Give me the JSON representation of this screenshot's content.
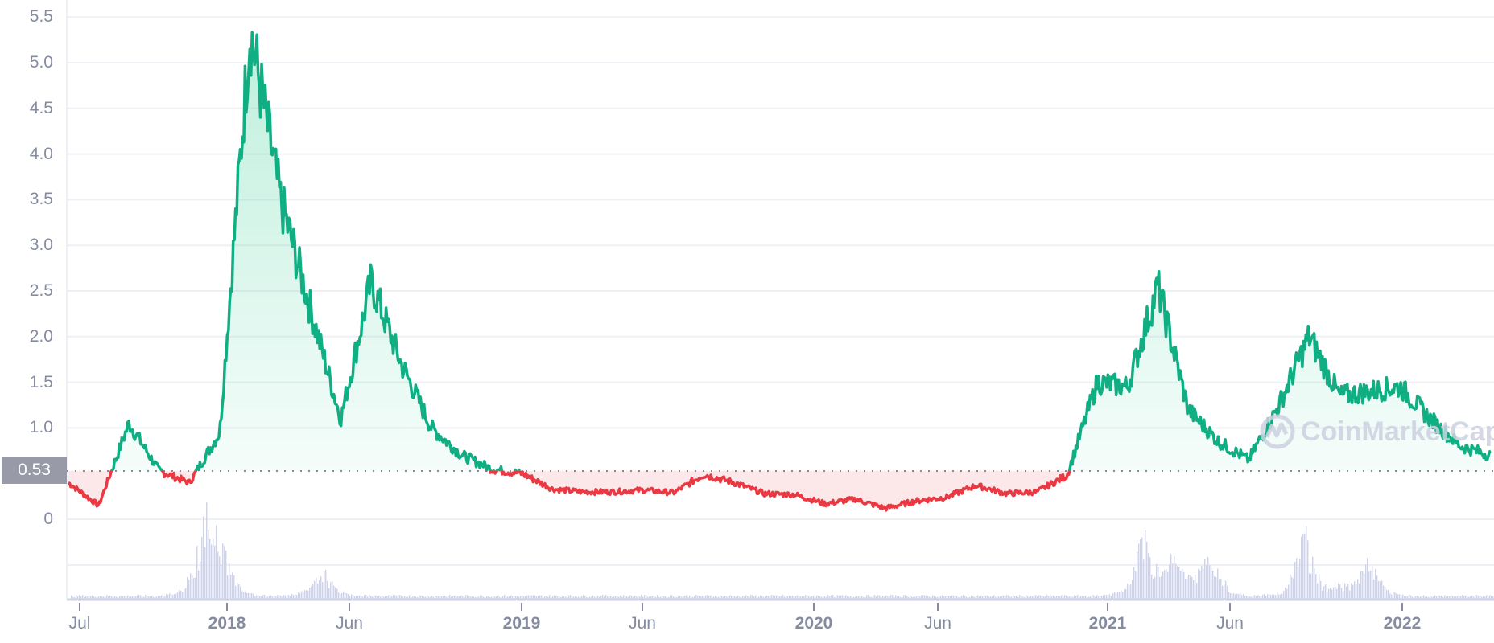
{
  "chart_data": {
    "type": "line",
    "title": "",
    "xlabel": "",
    "ylabel": "",
    "ylim": [
      0,
      5.5
    ],
    "grid": true,
    "legend": null,
    "y_ticks": [
      "5.5",
      "5.0",
      "4.5",
      "4.0",
      "3.5",
      "3.0",
      "2.5",
      "2.0",
      "1.5",
      "1.0",
      "0"
    ],
    "x_ticks": [
      {
        "label": "Jul",
        "year": false
      },
      {
        "label": "2018",
        "year": true
      },
      {
        "label": "Jun",
        "year": false
      },
      {
        "label": "2019",
        "year": true
      },
      {
        "label": "Jun",
        "year": false
      },
      {
        "label": "2020",
        "year": true
      },
      {
        "label": "Jun",
        "year": false
      },
      {
        "label": "2021",
        "year": true
      },
      {
        "label": "Jun",
        "year": false
      },
      {
        "label": "2022",
        "year": true
      }
    ],
    "reference_price": 0.53,
    "colors": {
      "above": "#16c784",
      "line_above": "#0fae83",
      "below": "#ea3943",
      "volume": "#cfd3e3",
      "grid": "#eff0f5",
      "axis_text": "#858ca2"
    },
    "series": [
      {
        "name": "Price",
        "x": [
          "2017-06",
          "2017-07",
          "2017-08",
          "2017-09",
          "2017-10",
          "2017-11",
          "2017-12",
          "2018-01",
          "2018-02",
          "2018-03",
          "2018-04",
          "2018-05",
          "2018-06",
          "2018-07",
          "2018-08",
          "2018-09",
          "2018-10",
          "2018-11",
          "2018-12",
          "2019-01",
          "2019-03",
          "2019-05",
          "2019-06",
          "2019-08",
          "2019-10",
          "2019-12",
          "2020-01",
          "2020-03",
          "2020-05",
          "2020-07",
          "2020-09",
          "2020-11",
          "2020-12",
          "2021-01",
          "2021-02",
          "2021-03",
          "2021-04",
          "2021-05",
          "2021-06",
          "2021-07",
          "2021-08",
          "2021-09",
          "2021-10",
          "2021-11",
          "2021-12",
          "2022-01",
          "2022-02",
          "2022-03"
        ],
        "values": [
          0.4,
          0.15,
          1.05,
          0.53,
          0.4,
          0.95,
          5.37,
          3.5,
          2.3,
          1.1,
          2.6,
          1.7,
          1.0,
          0.7,
          0.55,
          0.5,
          0.33,
          0.3,
          0.3,
          0.32,
          0.29,
          0.49,
          0.4,
          0.28,
          0.27,
          0.17,
          0.22,
          0.12,
          0.2,
          0.24,
          0.37,
          0.28,
          0.3,
          0.48,
          1.5,
          1.45,
          2.55,
          1.2,
          0.85,
          0.65,
          1.25,
          2.0,
          1.35,
          1.4,
          1.45,
          1.1,
          0.8,
          0.7
        ]
      },
      {
        "name": "Volume",
        "note": "spikes around Dec 2017, Mar-May 2021, Sep 2021"
      }
    ]
  },
  "axis": {
    "y": [
      "5.5",
      "5.0",
      "4.5",
      "4.0",
      "3.5",
      "3.0",
      "2.5",
      "2.0",
      "1.5",
      "1.0",
      "0"
    ],
    "x": [
      "Jul",
      "2018",
      "Jun",
      "2019",
      "Jun",
      "2020",
      "Jun",
      "2021",
      "Jun",
      "2022"
    ]
  },
  "price_tag": "0.53",
  "watermark": "CoinMarketCap"
}
